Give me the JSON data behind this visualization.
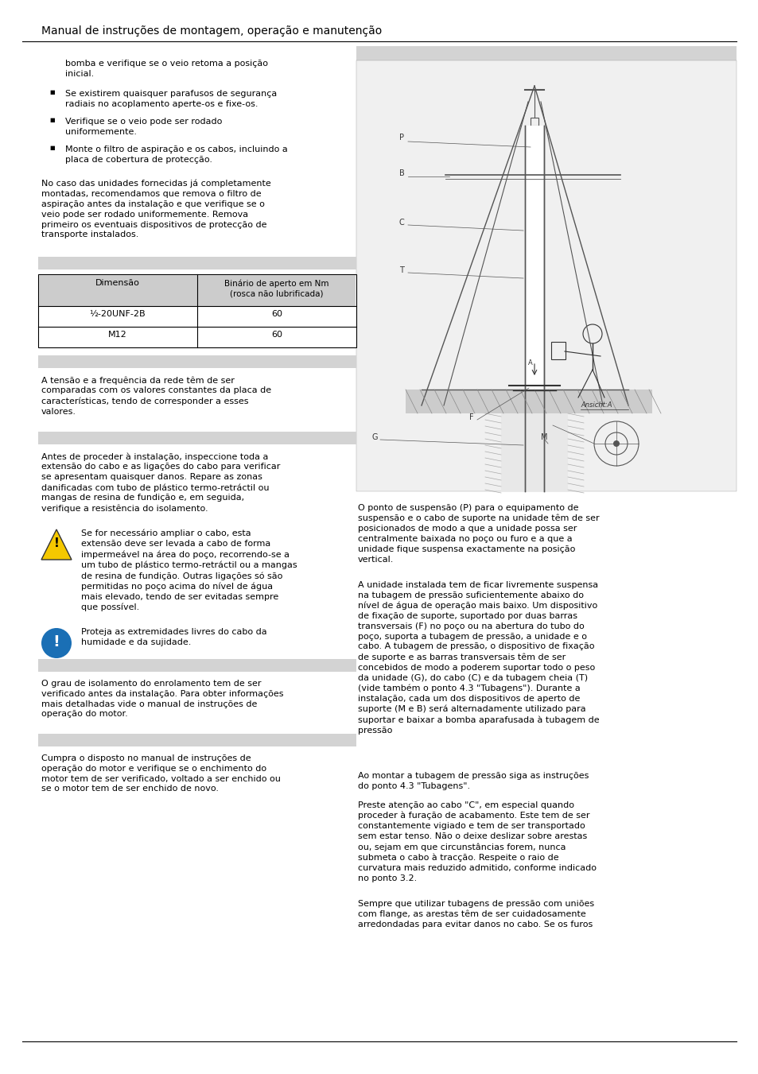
{
  "title": "Manual de instruções de montagem, operação e manutenção",
  "bg_color": "#ffffff",
  "section_bg": "#d3d3d3",
  "text_intro": "bomba e verifique se o veio retoma a posição\ninicial.",
  "bullets": [
    "Se existirem quaisquer parafusos de segurança\nradiais no acoplamento aperte-os e fixe-os.",
    "Verifique se o veio pode ser rodado\nuniformemente.",
    "Monte o filtro de aspiração e os cabos, incluindo a\nplaca de cobertura de protecção."
  ],
  "para1": "No caso das unidades fornecidas já completamente\nmontadas, recomendamos que remova o filtro de\naspiração antes da instalação e que verifique se o\nveio pode ser rodado uniformemente. Remova\nprimeiro os eventuais dispositivos de protecção de\ntransporte instalados.",
  "table_header1": "Dimensão",
  "table_header2": "Binário de aperto em Nm\n(rosca não lubrificada)",
  "table_rows": [
    [
      "½-20UNF-2B",
      "60"
    ],
    [
      "M12",
      "60"
    ]
  ],
  "para5": "A tensão e a frequência da rede têm de ser\ncomparadas com os valores constantes da placa de\ncaracterísticas, tendo de corresponder a esses\nvalores.",
  "para6_intro": "Antes de proceder à instalação, inspeccione toda a\nextensão do cabo e as ligações do cabo para verificar\nse apresentam quaisquer danos. Repare as zonas\ndanificadas com tubo de plástico termo-retráctil ou\nmangas de resina de fundição e, em seguida,\nverifique a resistência do isolamento.",
  "warning_text": "Se for necessário ampliar o cabo, esta\nextensão deve ser levada a cabo de forma\nimpermeável na área do poço, recorrendo-se a\num tubo de plástico termo-retráctil ou a mangas\nde resina de fundição. Outras ligações só são\npermitidas no poço acima do nível de água\nmais elevado, tendo de ser evitadas sempre\nque possível.",
  "info_text": "Proteja as extremidades livres do cabo da\nhumidade e da sujidade.",
  "para7": "O grau de isolamento do enrolamento tem de ser\nverificado antes da instalação. Para obter informações\nmais detalhadas vide o manual de instruções de\noperação do motor.",
  "para8": "Cumpra o disposto no manual de instruções de\noperação do motor e verifique se o enchimento do\nmotor tem de ser verificado, voltado a ser enchido ou\nse o motor tem de ser enchido de novo.",
  "right_para1": "O ponto de suspensão (P) para o equipamento de\nsuspensão e o cabo de suporte na unidade têm de ser\nposicionados de modo a que a unidade possa ser\ncentralmente baixada no poço ou furo e a que a\nunidade fique suspensa exactamente na posição\nvertical.",
  "right_para2": "A unidade instalada tem de ficar livremente suspensa\nna tubagem de pressão suficientemente abaixo do\nnível de água de operação mais baixo. Um dispositivo\nde fixação de suporte, suportado por duas barras\ntransversais (F) no poço ou na abertura do tubo do\npoço, suporta a tubagem de pressão, a unidade e o\ncabo. A tubagem de pressão, o dispositivo de fixação\nde suporte e as barras transversais têm de ser\nconcebidos de modo a poderem suportar todo o peso\nda unidade (G), do cabo (C) e da tubagem cheia (T)\n(vide também o ponto 4.3 \"Tubagens\"). Durante a\ninstalação, cada um dos dispositivos de aperto de\nsuporte (M e B) será alternadamente utilizado para\nsuportar e baixar a bomba aparafusada à tubagem de\npressão",
  "right_para3": "Ao montar a tubagem de pressão siga as instruções\ndo ponto 4.3 \"Tubagens\".",
  "right_para4": "Preste atenção ao cabo \"C\", em especial quando\nproceder à furação de acabamento. Este tem de ser\nconstantemente vigiado e tem de ser transportado\nsem estar tenso. Não o deixe deslizar sobre arestas\nou, sejam em que circunstâncias forem, nunca\nsubmeta o cabo à tracção. Respeite o raio de\ncurvatura mais reduzido admitido, conforme indicado\nno ponto 3.2.",
  "right_para5": "Sempre que utilizar tubagens de pressão com uniões\ncom flange, as arestas têm de ser cuidadosamente\narredondadas para evitar danos no cabo. Se os furos"
}
